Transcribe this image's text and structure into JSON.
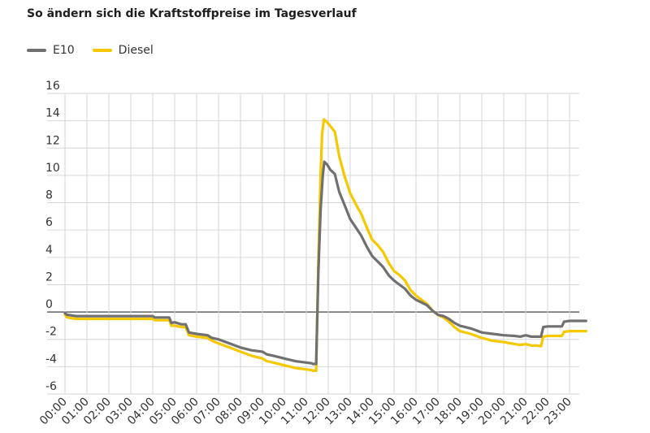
{
  "colors": {
    "E10": "#707070",
    "Diesel": "#f5c800",
    "grid": "#d6d6d6",
    "zero": "#555555"
  },
  "chart_data": {
    "type": "line",
    "title": "So ändern sich die Kraftstoffpreise im Tagesverlauf",
    "xlabel": "",
    "ylabel": "",
    "ylim": [
      -6,
      16
    ],
    "yticks": [
      16,
      14,
      12,
      10,
      8,
      6,
      4,
      2,
      0,
      -2,
      -4,
      -6
    ],
    "xticks": [
      "00:00",
      "01:00",
      "02:00",
      "03:00",
      "04:00",
      "05:00",
      "06:00",
      "07:00",
      "08:00",
      "09:00",
      "10:00",
      "11:00",
      "12:00",
      "13:00",
      "14:00",
      "15:00",
      "16:00",
      "17:00",
      "18:00",
      "19:00",
      "20:00",
      "21:00",
      "22:00",
      "23:00"
    ],
    "grid": "vertical and horizontal",
    "legend": "top-left",
    "series": [
      {
        "name": "E10",
        "points": [
          [
            0,
            -0.1
          ],
          [
            0.1,
            -0.2
          ],
          [
            0.5,
            -0.3
          ],
          [
            1,
            -0.3
          ],
          [
            2,
            -0.3
          ],
          [
            3,
            -0.3
          ],
          [
            4,
            -0.3
          ],
          [
            4.1,
            -0.4
          ],
          [
            4.5,
            -0.4
          ],
          [
            4.75,
            -0.4
          ],
          [
            4.85,
            -0.8
          ],
          [
            5,
            -0.75
          ],
          [
            5.3,
            -0.9
          ],
          [
            5.5,
            -0.9
          ],
          [
            5.65,
            -1.5
          ],
          [
            6,
            -1.6
          ],
          [
            6.5,
            -1.7
          ],
          [
            6.7,
            -1.9
          ],
          [
            7,
            -2.0
          ],
          [
            7.5,
            -2.3
          ],
          [
            8,
            -2.6
          ],
          [
            8.5,
            -2.8
          ],
          [
            9,
            -2.9
          ],
          [
            9.2,
            -3.1
          ],
          [
            9.5,
            -3.2
          ],
          [
            10,
            -3.4
          ],
          [
            10.5,
            -3.6
          ],
          [
            11,
            -3.7
          ],
          [
            11.25,
            -3.75
          ],
          [
            11.3,
            -3.8
          ],
          [
            11.45,
            -3.8
          ],
          [
            11.55,
            3.0
          ],
          [
            11.65,
            7.5
          ],
          [
            11.75,
            10.0
          ],
          [
            11.82,
            11.0
          ],
          [
            11.95,
            10.8
          ],
          [
            12.1,
            10.4
          ],
          [
            12.3,
            10.1
          ],
          [
            12.5,
            8.8
          ],
          [
            12.75,
            7.8
          ],
          [
            13,
            6.8
          ],
          [
            13.25,
            6.2
          ],
          [
            13.5,
            5.6
          ],
          [
            13.75,
            4.8
          ],
          [
            14,
            4.1
          ],
          [
            14.25,
            3.7
          ],
          [
            14.5,
            3.3
          ],
          [
            14.75,
            2.7
          ],
          [
            15,
            2.3
          ],
          [
            15.25,
            2.0
          ],
          [
            15.5,
            1.7
          ],
          [
            15.75,
            1.2
          ],
          [
            16,
            0.9
          ],
          [
            16.25,
            0.7
          ],
          [
            16.5,
            0.5
          ],
          [
            16.75,
            0.1
          ],
          [
            17,
            -0.2
          ],
          [
            17.25,
            -0.3
          ],
          [
            17.5,
            -0.5
          ],
          [
            17.75,
            -0.8
          ],
          [
            18,
            -1.0
          ],
          [
            18.5,
            -1.2
          ],
          [
            19,
            -1.5
          ],
          [
            19.5,
            -1.6
          ],
          [
            20,
            -1.7
          ],
          [
            20.5,
            -1.75
          ],
          [
            20.75,
            -1.8
          ],
          [
            21,
            -1.7
          ],
          [
            21.25,
            -1.8
          ],
          [
            21.5,
            -1.8
          ],
          [
            21.7,
            -1.8
          ],
          [
            21.8,
            -1.1
          ],
          [
            22,
            -1.05
          ],
          [
            22.5,
            -1.05
          ],
          [
            22.65,
            -1.05
          ],
          [
            22.75,
            -0.7
          ],
          [
            23,
            -0.65
          ],
          [
            23.5,
            -0.65
          ],
          [
            23.75,
            -0.65
          ]
        ]
      },
      {
        "name": "Diesel",
        "points": [
          [
            0,
            -0.2
          ],
          [
            0.1,
            -0.4
          ],
          [
            0.5,
            -0.5
          ],
          [
            1,
            -0.5
          ],
          [
            2,
            -0.5
          ],
          [
            3,
            -0.5
          ],
          [
            4,
            -0.5
          ],
          [
            4.1,
            -0.6
          ],
          [
            4.5,
            -0.6
          ],
          [
            4.75,
            -0.6
          ],
          [
            4.85,
            -1.0
          ],
          [
            5,
            -1.0
          ],
          [
            5.3,
            -1.1
          ],
          [
            5.5,
            -1.1
          ],
          [
            5.65,
            -1.7
          ],
          [
            6,
            -1.8
          ],
          [
            6.5,
            -1.9
          ],
          [
            6.7,
            -2.1
          ],
          [
            7,
            -2.3
          ],
          [
            7.5,
            -2.6
          ],
          [
            8,
            -2.9
          ],
          [
            8.5,
            -3.2
          ],
          [
            9,
            -3.4
          ],
          [
            9.2,
            -3.6
          ],
          [
            9.5,
            -3.7
          ],
          [
            10,
            -3.9
          ],
          [
            10.5,
            -4.1
          ],
          [
            11,
            -4.2
          ],
          [
            11.25,
            -4.25
          ],
          [
            11.3,
            -4.3
          ],
          [
            11.45,
            -4.3
          ],
          [
            11.55,
            4.0
          ],
          [
            11.65,
            10.0
          ],
          [
            11.72,
            13.0
          ],
          [
            11.8,
            14.1
          ],
          [
            11.95,
            13.9
          ],
          [
            12.1,
            13.6
          ],
          [
            12.3,
            13.2
          ],
          [
            12.5,
            11.4
          ],
          [
            12.75,
            9.9
          ],
          [
            13,
            8.7
          ],
          [
            13.25,
            7.9
          ],
          [
            13.5,
            7.2
          ],
          [
            13.75,
            6.2
          ],
          [
            14,
            5.3
          ],
          [
            14.25,
            4.9
          ],
          [
            14.5,
            4.4
          ],
          [
            14.75,
            3.6
          ],
          [
            15,
            3.0
          ],
          [
            15.25,
            2.7
          ],
          [
            15.5,
            2.3
          ],
          [
            15.75,
            1.6
          ],
          [
            16,
            1.2
          ],
          [
            16.25,
            0.9
          ],
          [
            16.5,
            0.6
          ],
          [
            16.75,
            0.1
          ],
          [
            17,
            -0.2
          ],
          [
            17.25,
            -0.4
          ],
          [
            17.5,
            -0.7
          ],
          [
            17.75,
            -1.1
          ],
          [
            18,
            -1.4
          ],
          [
            18.5,
            -1.6
          ],
          [
            19,
            -1.9
          ],
          [
            19.5,
            -2.1
          ],
          [
            20,
            -2.2
          ],
          [
            20.5,
            -2.35
          ],
          [
            20.75,
            -2.4
          ],
          [
            21,
            -2.35
          ],
          [
            21.25,
            -2.45
          ],
          [
            21.5,
            -2.45
          ],
          [
            21.7,
            -2.5
          ],
          [
            21.8,
            -1.8
          ],
          [
            22,
            -1.75
          ],
          [
            22.5,
            -1.75
          ],
          [
            22.65,
            -1.75
          ],
          [
            22.75,
            -1.45
          ],
          [
            23,
            -1.4
          ],
          [
            23.5,
            -1.4
          ],
          [
            23.75,
            -1.4
          ]
        ]
      }
    ]
  }
}
